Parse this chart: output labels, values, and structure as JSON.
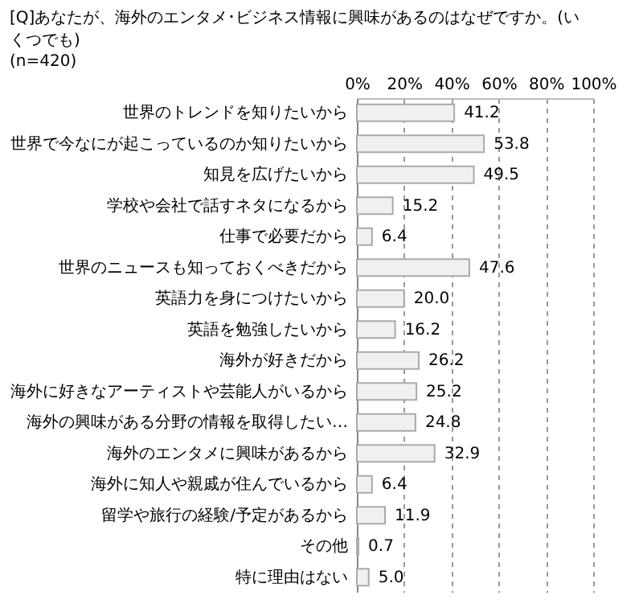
{
  "chart_data": {
    "type": "bar",
    "orientation": "horizontal",
    "title": "[Q]あなたが、海外のエンタメ･ビジネス情報に興味があるのはなぜですか。(いくつでも)",
    "subtitle": "(n=420)",
    "categories": [
      "世界のトレンドを知りたいから",
      "世界で今なにが起こっているのか知りたいから",
      "知見を広げたいから",
      "学校や会社で話すネタになるから",
      "仕事で必要だから",
      "世界のニュースも知っておくべきだから",
      "英語力を身につけたいから",
      "英語を勉強したいから",
      "海外が好きだから",
      "海外に好きなアーティストや芸能人がいるから",
      "海外の興味がある分野の情報を取得したい…",
      "海外のエンタメに興味があるから",
      "海外に知人や親戚が住んでいるから",
      "留学や旅行の経験/予定があるから",
      "その他",
      "特に理由はない"
    ],
    "values": [
      41.2,
      53.8,
      49.5,
      15.2,
      6.4,
      47.6,
      20.0,
      16.2,
      26.2,
      25.2,
      24.8,
      32.9,
      6.4,
      11.9,
      0.7,
      5.0
    ],
    "color": "#f0f0f0",
    "xlim": [
      0,
      100
    ],
    "xticks": [
      {
        "value": 0,
        "label": "0%"
      },
      {
        "value": 20,
        "label": "20%"
      },
      {
        "value": 40,
        "label": "40%"
      },
      {
        "value": 60,
        "label": "60%"
      },
      {
        "value": 80,
        "label": "80%"
      },
      {
        "value": 100,
        "label": "100%"
      }
    ],
    "grid": "x",
    "value_labels": [
      "41.2",
      "53.8",
      "49.5",
      "15.2",
      "6.4",
      "47.6",
      "20.0",
      "16.2",
      "26.2",
      "25.2",
      "24.8",
      "32.9",
      "6.4",
      "11.9",
      "0.7",
      "5.0"
    ]
  }
}
